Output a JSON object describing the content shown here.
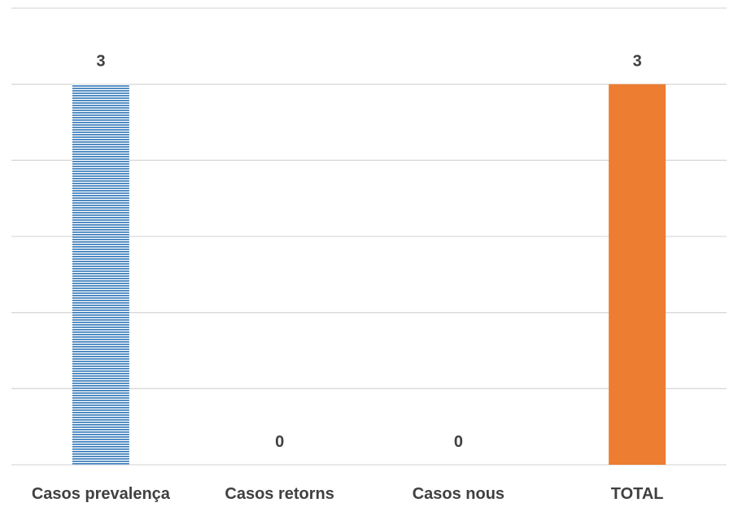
{
  "chart_data": {
    "type": "bar",
    "categories": [
      "Casos prevalença",
      "Casos retorns",
      "Casos nous",
      "TOTAL"
    ],
    "values": [
      3,
      0,
      0,
      3
    ],
    "data_labels": [
      "3",
      "0",
      "0",
      "3"
    ],
    "ylim": [
      0,
      3.6
    ],
    "y_gridline_step": 0.6,
    "grid": true,
    "title": "",
    "xlabel": "",
    "ylabel": "",
    "bar_styles": [
      {
        "fill": "hatched-horizontal",
        "color": "#2e75b6"
      },
      {
        "fill": "solid",
        "color": "#ed7d31"
      },
      {
        "fill": "solid",
        "color": "#ed7d31"
      },
      {
        "fill": "solid",
        "color": "#ed7d31"
      }
    ]
  }
}
